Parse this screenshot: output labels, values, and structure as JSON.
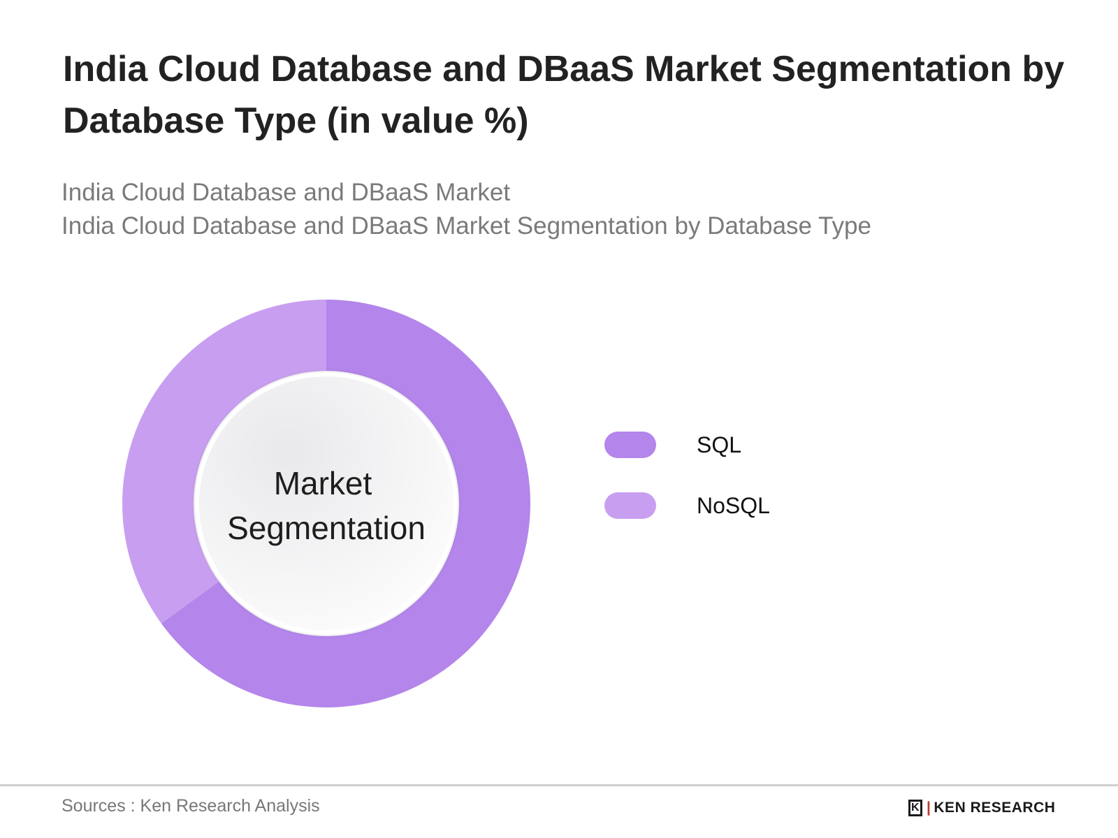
{
  "header": {
    "title": "India Cloud Database and DBaaS Market Segmentation by Database Type (in value %)",
    "subtitle_line1": "India Cloud Database and DBaaS Market",
    "subtitle_line2": "India Cloud Database and DBaaS Market Segmentation by Database Type"
  },
  "chart_data": {
    "type": "pie",
    "title": "India Cloud Database and DBaaS Market Segmentation by Database Type (in value %)",
    "center_label_line1": "Market",
    "center_label_line2": "Segmentation",
    "categories": [
      "SQL",
      "NoSQL"
    ],
    "values": [
      65,
      35
    ],
    "colors": [
      "#b485eb",
      "#c89ff0"
    ],
    "legend_position": "right"
  },
  "footer": {
    "source": "Sources : Ken Research Analysis",
    "brand": "KEN RESEARCH",
    "brand_mark": "K"
  }
}
